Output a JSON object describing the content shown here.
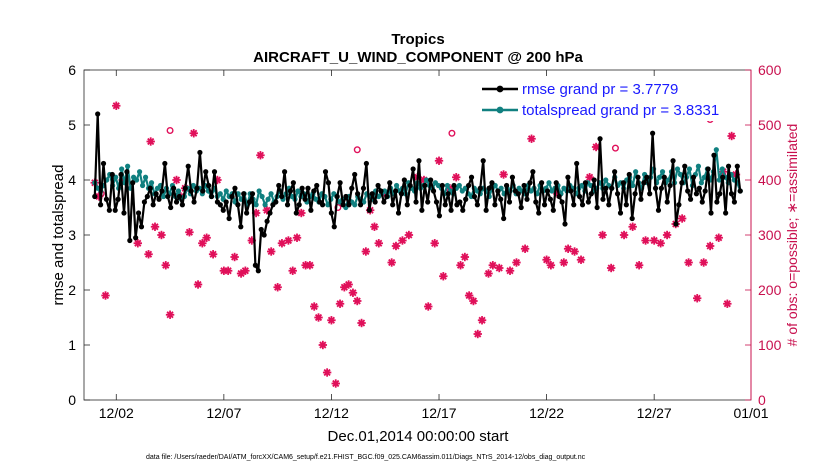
{
  "chart_data": {
    "type": "line",
    "title": "Tropics",
    "subtitle": "AIRCRAFT_U_WIND_COMPONENT @ 200 hPa",
    "xlabel": "Dec.01,2014 00:00:00 start",
    "ylabel": "rmse and totalspread",
    "y2label": "# of obs: o=possible; ∗=assimilated",
    "footnote": "data file: /Users/raeder/DAI/ATM_forcXX/CAM6_setup/f.e21.FHIST_BGC.f09_025.CAM6assim.011/Diags_NTrS_2014-12/obs_diag_output.nc",
    "xlim": [
      0.5,
      31
    ],
    "ylim": [
      0,
      6
    ],
    "y2lim": [
      0,
      600
    ],
    "xticks": [
      2,
      7,
      12,
      17,
      22,
      27,
      32
    ],
    "xticklabels": [
      "12/02",
      "12/07",
      "12/12",
      "12/17",
      "12/22",
      "12/27",
      "01/01"
    ],
    "yticks": [
      0,
      1,
      2,
      3,
      4,
      5,
      6
    ],
    "y2ticks": [
      0,
      100,
      200,
      300,
      400,
      500,
      600
    ],
    "legend": [
      "rmse grand pr = 3.7779",
      "totalspread grand pr = 3.8331"
    ],
    "colors": {
      "rmse": "#000000",
      "spread": "#108080",
      "obs": "#e0105a",
      "axis2": "#c8104e"
    },
    "series": [
      {
        "name": "rmse",
        "values": [
          3.7,
          5.2,
          3.55,
          4.3,
          3.65,
          3.45,
          4.1,
          3.45,
          3.65,
          4.1,
          3.4,
          4.15,
          2.9,
          3.95,
          2.95,
          3.4,
          3.15,
          3.6,
          3.7,
          3.85,
          3.55,
          3.75,
          3.65,
          3.8,
          4.3,
          3.7,
          3.5,
          3.85,
          3.6,
          3.7,
          3.55,
          3.85,
          4.25,
          3.8,
          3.6,
          3.85,
          4.5,
          3.8,
          4.15,
          3.9,
          3.7,
          4.15,
          3.6,
          3.55,
          3.45,
          3.6,
          3.3,
          3.7,
          3.85,
          3.55,
          3.15,
          3.75,
          3.4,
          3.6,
          3.75,
          2.45,
          2.35,
          3.1,
          3.0,
          3.25,
          3.4,
          3.55,
          3.6,
          3.9,
          3.7,
          4.15,
          3.55,
          3.8,
          3.95,
          3.4,
          3.55,
          3.85,
          3.65,
          3.85,
          3.45,
          3.8,
          3.9,
          3.6,
          3.55,
          4.15,
          3.95,
          3.4,
          3.15,
          3.7,
          3.95,
          3.55,
          3.7,
          3.55,
          3.85,
          4.1,
          3.75,
          3.55,
          3.85,
          4.3,
          3.45,
          3.75,
          3.6,
          3.9,
          3.8,
          3.6,
          3.7,
          3.95,
          3.55,
          3.8,
          3.4,
          3.75,
          4.0,
          3.55,
          3.9,
          4.2,
          3.6,
          4.35,
          3.45,
          3.9,
          3.6,
          4.0,
          3.8,
          3.6,
          3.35,
          3.9,
          3.55,
          3.75,
          3.45,
          3.9,
          3.55,
          3.6,
          3.45,
          3.65,
          3.9,
          4.05,
          3.7,
          3.55,
          3.85,
          4.35,
          3.45,
          3.85,
          3.95,
          3.55,
          3.8,
          3.65,
          3.3,
          3.9,
          3.6,
          4.05,
          3.8,
          3.75,
          3.5,
          3.9,
          3.65,
          3.95,
          4.15,
          3.6,
          3.4,
          3.95,
          3.55,
          3.8,
          3.65,
          3.45,
          3.95,
          3.7,
          3.6,
          3.2,
          4.05,
          3.8,
          3.55,
          4.3,
          3.7,
          3.55,
          3.95,
          3.6,
          3.75,
          4.0,
          3.5,
          4.75,
          3.65,
          3.85,
          3.55,
          3.85,
          4.15,
          3.75,
          3.4,
          3.95,
          3.55,
          4.1,
          3.3,
          3.75,
          4.05,
          3.65,
          3.95,
          4.05,
          3.75,
          4.85,
          3.85,
          3.45,
          3.85,
          4.05,
          3.6,
          3.9,
          4.35,
          3.2,
          3.55,
          3.95,
          4.25,
          3.8,
          3.65,
          4.05,
          3.75,
          3.85,
          3.6,
          3.8,
          4.2,
          3.4,
          4.45,
          3.6,
          3.75,
          4.05,
          3.4,
          4.25,
          3.75,
          3.6,
          4.25,
          3.8
        ],
        "marker": "dot"
      },
      {
        "name": "totalspread",
        "values": [
          3.95,
          3.85,
          3.8,
          3.9,
          4.0,
          4.1,
          3.9,
          4.05,
          3.85,
          4.2,
          3.95,
          4.25,
          3.85,
          4.05,
          4.0,
          4.15,
          3.9,
          4.05,
          3.85,
          3.95,
          3.75,
          3.85,
          3.9,
          3.7,
          3.85,
          3.75,
          3.9,
          3.7,
          3.8,
          3.65,
          3.7,
          3.85,
          3.75,
          3.9,
          3.8,
          3.85,
          3.75,
          3.9,
          3.8,
          3.7,
          3.85,
          3.7,
          3.75,
          3.65,
          3.8,
          3.7,
          3.75,
          3.6,
          3.75,
          3.65,
          3.75,
          3.55,
          3.75,
          3.65,
          3.55,
          3.8,
          3.7,
          3.55,
          3.65,
          3.75,
          3.6,
          3.7,
          3.8,
          3.65,
          3.75,
          3.85,
          3.7,
          3.65,
          3.8,
          3.7,
          3.75,
          3.6,
          3.7,
          3.75,
          3.65,
          3.6,
          3.75,
          3.7,
          3.55,
          3.65,
          3.75,
          3.7,
          3.6,
          3.65,
          3.5,
          3.7,
          3.6,
          3.55,
          3.7,
          3.65,
          3.6,
          3.75,
          3.7,
          3.65,
          3.8,
          3.7,
          3.75,
          3.8,
          3.7,
          3.85,
          3.75,
          3.9,
          3.8,
          3.85,
          3.75,
          3.95,
          3.85,
          3.8,
          3.95,
          3.85,
          3.9,
          4.0,
          3.9,
          3.85,
          3.95,
          3.9,
          3.85,
          3.75,
          3.9,
          3.8,
          3.75,
          3.85,
          3.9,
          3.8,
          3.85,
          3.75,
          3.7,
          3.85,
          3.8,
          3.75,
          3.85,
          3.8,
          3.7,
          3.85,
          3.9,
          3.8,
          3.85,
          3.75,
          3.85,
          3.8,
          3.9,
          3.75,
          3.85,
          3.8,
          3.75,
          3.9,
          3.8,
          3.85,
          3.75,
          3.9,
          3.8,
          3.85,
          3.95,
          3.8,
          3.85,
          3.9,
          3.75,
          3.85,
          3.8,
          3.9,
          3.85,
          3.75,
          3.85,
          3.9,
          3.8,
          3.95,
          3.9,
          3.8,
          3.85,
          3.95,
          3.85,
          4.0,
          3.9,
          3.85,
          4.05,
          3.9,
          3.95,
          3.85,
          4.0,
          4.05,
          3.9,
          4.15,
          3.95,
          3.85,
          4.1,
          3.95,
          4.05,
          4.2,
          3.95,
          4.05,
          4.15,
          3.95,
          4.0,
          4.15,
          3.95,
          4.2,
          4.1,
          3.95,
          4.05,
          4.2,
          3.9,
          4.1,
          4.25,
          3.95,
          4.05,
          4.2,
          4.0,
          4.15,
          4.55,
          4.0,
          4.2,
          4.05,
          3.95,
          4.1,
          4.0,
          3.95,
          3.8
        ],
        "marker": "dot"
      },
      {
        "name": "obs assimilated",
        "axis": "right",
        "x": [
          1.0,
          1.2,
          1.5,
          2.0,
          2.3,
          3.0,
          3.5,
          3.6,
          3.8,
          4.1,
          4.3,
          4.5,
          4.8,
          5.0,
          5.2,
          5.4,
          5.6,
          5.8,
          6.0,
          6.2,
          6.5,
          6.7,
          7.0,
          7.2,
          7.5,
          7.8,
          8.0,
          8.3,
          8.5,
          8.7,
          9.0,
          9.2,
          9.5,
          9.7,
          10.0,
          10.2,
          10.4,
          10.6,
          10.8,
          11.0,
          11.2,
          11.4,
          11.6,
          11.8,
          12.0,
          12.2,
          12.4,
          12.6,
          12.8,
          13.0,
          13.2,
          13.4,
          13.6,
          13.8,
          14.0,
          14.2,
          14.5,
          14.8,
          15.0,
          15.3,
          15.6,
          16.0,
          16.3,
          16.5,
          16.8,
          17.0,
          17.2,
          17.5,
          17.8,
          18.0,
          18.2,
          18.4,
          18.6,
          18.8,
          19.0,
          19.3,
          19.5,
          19.8,
          20.0,
          20.3,
          20.6,
          21.0,
          21.3,
          21.6,
          22.0,
          22.2,
          22.5,
          22.8,
          23.0,
          23.3,
          23.6,
          24.0,
          24.3,
          24.6,
          25.0,
          25.3,
          25.6,
          26.0,
          26.3,
          26.6,
          27.0,
          27.3,
          27.6,
          28.0,
          28.3,
          28.6,
          29.0,
          29.3,
          29.6,
          30.0,
          30.2,
          30.4,
          30.6,
          30.8
        ],
        "values": [
          395,
          370,
          190,
          535,
          400,
          285,
          265,
          470,
          315,
          300,
          245,
          155,
          400,
          370,
          385,
          305,
          485,
          210,
          285,
          295,
          265,
          400,
          235,
          235,
          260,
          230,
          235,
          290,
          340,
          445,
          345,
          270,
          205,
          285,
          290,
          235,
          295,
          340,
          245,
          245,
          170,
          150,
          100,
          50,
          145,
          30,
          175,
          205,
          210,
          195,
          180,
          140,
          270,
          345,
          315,
          285,
          375,
          250,
          280,
          290,
          300,
          405,
          400,
          170,
          285,
          435,
          225,
          385,
          405,
          245,
          260,
          190,
          180,
          120,
          145,
          230,
          245,
          240,
          410,
          235,
          250,
          275,
          475,
          520,
          255,
          245,
          375,
          250,
          275,
          270,
          255,
          405,
          460,
          300,
          240,
          540,
          300,
          315,
          245,
          290,
          290,
          285,
          300,
          320,
          330,
          250,
          185,
          250,
          280,
          295,
          415,
          175,
          480,
          410
        ],
        "marker": "star"
      },
      {
        "name": "obs possible",
        "axis": "right",
        "x": [
          1.3,
          4.5,
          12.3,
          13.2,
          17.6,
          22.5,
          25.2,
          27.4,
          29.6
        ],
        "values": [
          375,
          490,
          350,
          455,
          485,
          545,
          458,
          545,
          510
        ],
        "marker": "circle"
      }
    ]
  }
}
